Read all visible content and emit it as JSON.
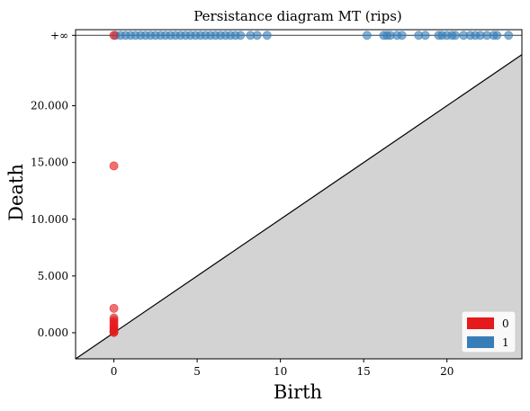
{
  "chart_data": {
    "type": "scatter",
    "title": "Persistance diagram MT (rips)",
    "xlabel": "Birth",
    "ylabel": "Death",
    "xlim": [
      -2.3,
      24.5
    ],
    "ylim": [
      -2300,
      26700
    ],
    "x_ticks": [
      {
        "value": 0,
        "label": "0"
      },
      {
        "value": 5,
        "label": "5"
      },
      {
        "value": 10,
        "label": "10"
      },
      {
        "value": 15,
        "label": "15"
      },
      {
        "value": 20,
        "label": "20"
      }
    ],
    "y_ticks": [
      {
        "value": 0,
        "label": "0.000"
      },
      {
        "value": 5000,
        "label": "5.000"
      },
      {
        "value": 10000,
        "label": "10.000"
      },
      {
        "value": 15000,
        "label": "15.000"
      },
      {
        "value": 20000,
        "label": "20.000"
      }
    ],
    "infinity": {
      "value": 26200,
      "label": "+∞"
    },
    "diagonal": true,
    "legend_position": "lower-right",
    "series": [
      {
        "name": "0",
        "color": "#e41a1c",
        "points": [
          {
            "x": 0,
            "y": "inf"
          },
          {
            "x": 0,
            "y": 14700
          },
          {
            "x": 0,
            "y": 2150
          },
          {
            "x": 0,
            "y": 1300
          },
          {
            "x": 0,
            "y": 1100
          },
          {
            "x": 0,
            "y": 900
          },
          {
            "x": 0,
            "y": 700
          },
          {
            "x": 0,
            "y": 500
          },
          {
            "x": 0,
            "y": 350
          },
          {
            "x": 0,
            "y": 200
          },
          {
            "x": 0,
            "y": 80
          },
          {
            "x": 0,
            "y": 20
          }
        ]
      },
      {
        "name": "1",
        "color": "#377eb8",
        "points": [
          {
            "x": 0.1,
            "y": "inf"
          },
          {
            "x": 0.4,
            "y": "inf"
          },
          {
            "x": 0.7,
            "y": "inf"
          },
          {
            "x": 1.0,
            "y": "inf"
          },
          {
            "x": 1.3,
            "y": "inf"
          },
          {
            "x": 1.6,
            "y": "inf"
          },
          {
            "x": 1.9,
            "y": "inf"
          },
          {
            "x": 2.2,
            "y": "inf"
          },
          {
            "x": 2.5,
            "y": "inf"
          },
          {
            "x": 2.8,
            "y": "inf"
          },
          {
            "x": 3.1,
            "y": "inf"
          },
          {
            "x": 3.4,
            "y": "inf"
          },
          {
            "x": 3.7,
            "y": "inf"
          },
          {
            "x": 4.0,
            "y": "inf"
          },
          {
            "x": 4.3,
            "y": "inf"
          },
          {
            "x": 4.6,
            "y": "inf"
          },
          {
            "x": 4.9,
            "y": "inf"
          },
          {
            "x": 5.2,
            "y": "inf"
          },
          {
            "x": 5.5,
            "y": "inf"
          },
          {
            "x": 5.8,
            "y": "inf"
          },
          {
            "x": 6.1,
            "y": "inf"
          },
          {
            "x": 6.4,
            "y": "inf"
          },
          {
            "x": 6.7,
            "y": "inf"
          },
          {
            "x": 7.0,
            "y": "inf"
          },
          {
            "x": 7.3,
            "y": "inf"
          },
          {
            "x": 7.6,
            "y": "inf"
          },
          {
            "x": 8.2,
            "y": "inf"
          },
          {
            "x": 8.6,
            "y": "inf"
          },
          {
            "x": 9.2,
            "y": "inf"
          },
          {
            "x": 15.2,
            "y": "inf"
          },
          {
            "x": 16.2,
            "y": "inf"
          },
          {
            "x": 16.4,
            "y": "inf"
          },
          {
            "x": 16.6,
            "y": "inf"
          },
          {
            "x": 17.0,
            "y": "inf"
          },
          {
            "x": 17.3,
            "y": "inf"
          },
          {
            "x": 18.3,
            "y": "inf"
          },
          {
            "x": 18.7,
            "y": "inf"
          },
          {
            "x": 19.5,
            "y": "inf"
          },
          {
            "x": 19.7,
            "y": "inf"
          },
          {
            "x": 20.0,
            "y": "inf"
          },
          {
            "x": 20.3,
            "y": "inf"
          },
          {
            "x": 20.5,
            "y": "inf"
          },
          {
            "x": 21.0,
            "y": "inf"
          },
          {
            "x": 21.4,
            "y": "inf"
          },
          {
            "x": 21.7,
            "y": "inf"
          },
          {
            "x": 22.0,
            "y": "inf"
          },
          {
            "x": 22.4,
            "y": "inf"
          },
          {
            "x": 22.8,
            "y": "inf"
          },
          {
            "x": 23.0,
            "y": "inf"
          },
          {
            "x": 23.7,
            "y": "inf"
          }
        ]
      }
    ]
  }
}
